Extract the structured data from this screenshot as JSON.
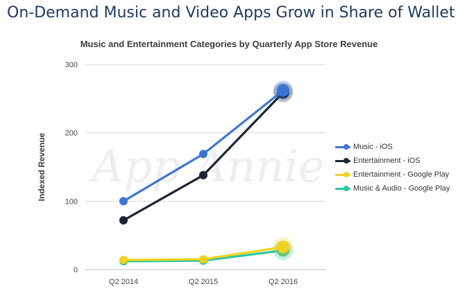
{
  "page": {
    "title": "On-Demand Music and Video Apps Grow in Share of Wallet"
  },
  "chart_data": {
    "type": "line",
    "title": "Music and Entertainment Categories by Quarterly App Store Revenue",
    "xlabel": "",
    "ylabel": "Indexed Revenue",
    "categories": [
      "Q2 2014",
      "Q2 2015",
      "Q2 2016"
    ],
    "yticks": [
      0,
      100,
      200,
      300
    ],
    "ylim": [
      0,
      300
    ],
    "grid": true,
    "legend_position": "right",
    "watermark": "App Annie",
    "series": [
      {
        "name": "Music - iOS",
        "color": "#3a75d4",
        "values": [
          100,
          169,
          262
        ]
      },
      {
        "name": "Entertainment - iOS",
        "color": "#1a2433",
        "values": [
          72,
          138,
          259
        ]
      },
      {
        "name": "Entertainment - Google Play",
        "color": "#f2d21c",
        "values": [
          14,
          15,
          33
        ]
      },
      {
        "name": "Music & Audio - Google Play",
        "color": "#2cc6a0",
        "values": [
          12,
          13,
          28
        ]
      }
    ]
  }
}
